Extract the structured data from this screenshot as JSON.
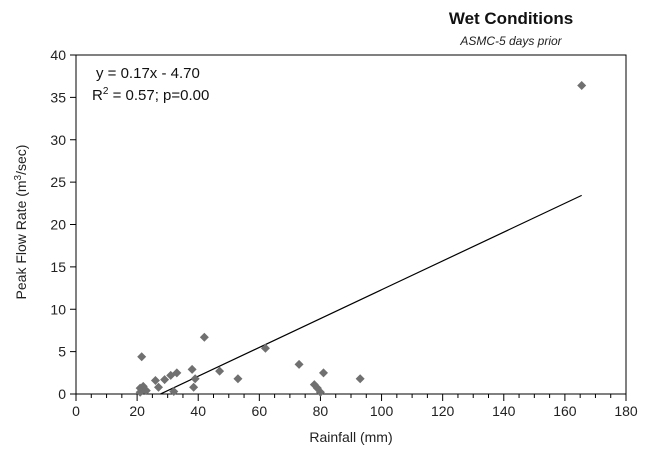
{
  "chart_data": {
    "type": "scatter",
    "title": "Wet Conditions",
    "subtitle": "ASMC-5 days prior",
    "xlabel": "Rainfall (mm)",
    "ylabel_prefix": "Peak Flow Rate (m",
    "ylabel_sup": "3",
    "ylabel_suffix": "/sec)",
    "xlim": [
      0,
      180
    ],
    "ylim": [
      0,
      40
    ],
    "x_ticks": [
      0,
      20,
      40,
      60,
      80,
      100,
      120,
      140,
      160,
      180
    ],
    "y_ticks": [
      0,
      5,
      10,
      15,
      20,
      25,
      30,
      35,
      40
    ],
    "x_minor_step": 5,
    "grid": false,
    "annotation": {
      "equation": "y = 0.17x - 4.70",
      "r_prefix": "R",
      "r_sup": "2",
      "r_suffix": " = 0.57; p=0.00"
    },
    "trendline": {
      "slope": 0.17,
      "intercept": -4.7,
      "x_range": [
        27.6,
        165.5
      ]
    },
    "marker_color": "#707070",
    "line_color": "#000000",
    "points": {
      "x": [
        21,
        22,
        21.5,
        23,
        21,
        26,
        27,
        29,
        31,
        32,
        33,
        38,
        38.5,
        39,
        42,
        47,
        53,
        62,
        73,
        78,
        79,
        80,
        81,
        93,
        165.5
      ],
      "y": [
        0.7,
        0.9,
        4.4,
        0.4,
        0.2,
        1.6,
        0.8,
        1.7,
        2.2,
        0.3,
        2.5,
        2.9,
        0.8,
        1.8,
        6.7,
        2.7,
        1.8,
        5.4,
        3.5,
        1.1,
        0.7,
        0.2,
        2.5,
        1.8,
        36.4
      ]
    }
  }
}
